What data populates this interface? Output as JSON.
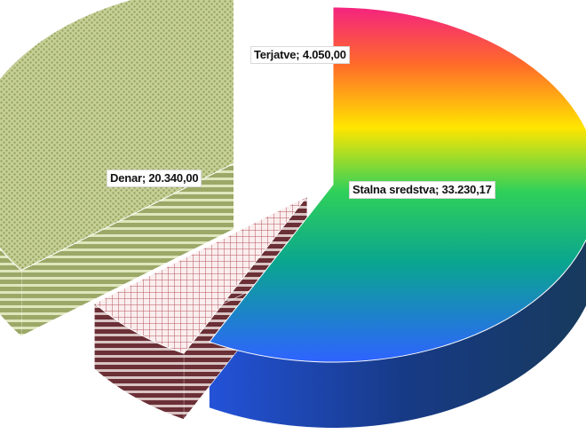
{
  "chart_data": {
    "type": "pie",
    "style": "3d-exploded",
    "title": "",
    "legend": "none",
    "slices": [
      {
        "label": "Stalna sredstva",
        "value": 33230.17,
        "value_text": "33.230,17",
        "fill": "rainbow-gradient"
      },
      {
        "label": "Terjatve",
        "value": 4050.0,
        "value_text": "4.050,00",
        "fill": "#b5545f"
      },
      {
        "label": "Denar",
        "value": 20340.0,
        "value_text": "20.340,00",
        "fill": "#a4b26a"
      }
    ],
    "data_labels": [
      "Stalna sredstva; 33.230,17",
      "Terjatve; 4.050,00",
      "Denar; 20.340,00"
    ]
  }
}
